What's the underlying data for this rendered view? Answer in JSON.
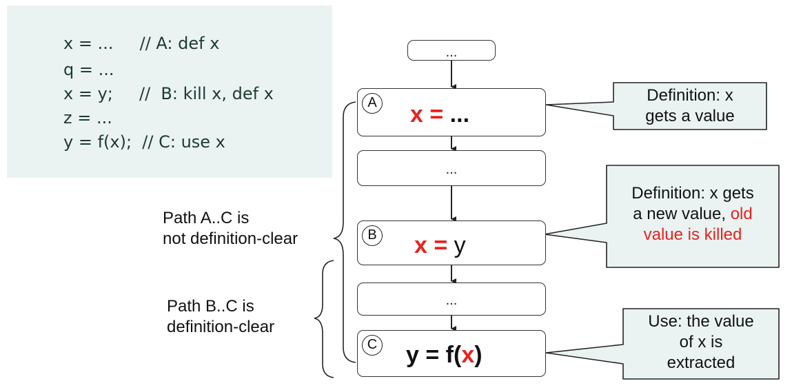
{
  "code": {
    "lines": [
      "x = ...     // A: def x",
      "q = ...",
      "x = y;     //  B: kill x, def x",
      "z = ...",
      "y = f(x);  // C: use x"
    ]
  },
  "flow": {
    "top_box": "...",
    "node_a": {
      "letter": "A",
      "lhs": "x",
      "op": " = ",
      "rhs": "..."
    },
    "mid_box_1": "...",
    "node_b": {
      "letter": "B",
      "lhs": "x",
      "op": " = ",
      "rhs": "y"
    },
    "mid_box_2": "...",
    "node_c": {
      "letter": "C",
      "lhs": "y = f(",
      "var": "x",
      "rhs": ")"
    }
  },
  "callouts": {
    "definition_a": {
      "line1": "Definition: x",
      "line2": "gets a value"
    },
    "definition_b": {
      "line1": "Definition: x gets",
      "line2_pre": "a new value, ",
      "line2_red": "old",
      "line3_red": "value is killed"
    },
    "use_c": {
      "line1": "Use: the value",
      "line2": "of x is",
      "line3": "extracted"
    }
  },
  "paths": {
    "a_to_c": {
      "line1": "Path A..C is",
      "line2": "not definition-clear"
    },
    "b_to_c": {
      "line1": "Path B..C is",
      "line2": "definition-clear"
    }
  },
  "colors": {
    "highlight": "#e8221e",
    "code_bg": "#eaf3f2",
    "callout_bg": "#eaf3f2",
    "code_text": "#1d3b2e"
  }
}
